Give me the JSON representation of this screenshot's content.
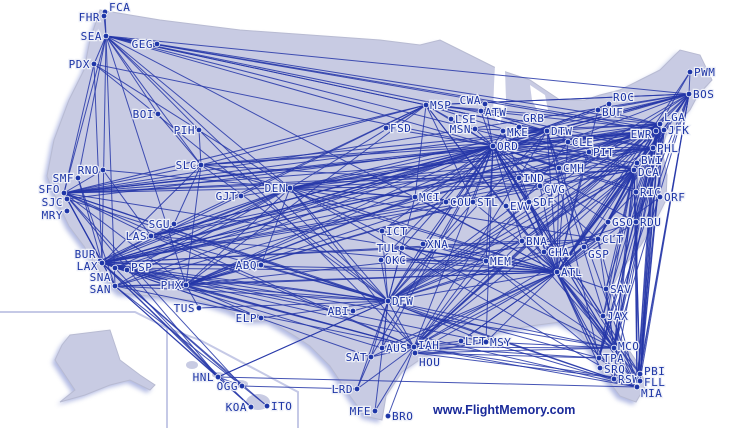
{
  "map": {
    "colors": {
      "land": "#c8cbe3",
      "route": "#2436a8",
      "airport": "#1e36a8",
      "label": "#1d35a6",
      "inset_border": "#c5c9e6"
    },
    "airports": [
      "FCA",
      "FHR",
      "SEA",
      "GEG",
      "PDX",
      "BOI",
      "PIH",
      "SLC",
      "RNO",
      "SMF",
      "SFO",
      "SJC",
      "MRY",
      "GJT",
      "DEN",
      "LAS",
      "SGU",
      "BUR",
      "LAX",
      "SNA",
      "PSP",
      "SAN",
      "PHX",
      "TUS",
      "ABQ",
      "ELP",
      "ABI",
      "DFW",
      "AUS",
      "SAT",
      "IAH",
      "HOU",
      "LFT",
      "MSY",
      "LRD",
      "MFE",
      "BRO",
      "HNL",
      "OGG",
      "KOA",
      "ITO",
      "ICT",
      "MCI",
      "COU",
      "STL",
      "EVV",
      "SDF",
      "IND",
      "CVG",
      "CMH",
      "ORD",
      "MSN",
      "MKE",
      "GRB",
      "DTW",
      "CLE",
      "PIT",
      "LSE",
      "MSP",
      "FSD",
      "ATW",
      "CWA",
      "BUF",
      "ROC",
      "BOS",
      "PWM",
      "JFK",
      "LGA",
      "EWR",
      "PHL",
      "BWI",
      "DCA",
      "RIC",
      "ORF",
      "GSO",
      "RDU",
      "CLT",
      "GSP",
      "BNA",
      "CHA",
      "ATL",
      "XNA",
      "TUL",
      "OKC",
      "MEM",
      "SAV",
      "JAX",
      "MCO",
      "TPA",
      "SRQ",
      "RSW",
      "PBI",
      "FLL",
      "MIA"
    ],
    "routes": [
      "FHR-SEA",
      "FCA-SEA",
      "SEA-PDX",
      "SEA-GEG",
      "SEA-BOI",
      "SEA-SLC",
      "SEA-SFO",
      "SEA-SMF",
      "SEA-LAX",
      "SEA-SAN",
      "SEA-PHX",
      "SEA-DEN",
      "SEA-ORD",
      "SEA-MSP",
      "SEA-DTW",
      "SEA-JFK",
      "SEA-EWR",
      "SEA-BOS",
      "SEA-LGA",
      "SEA-DFW",
      "SEA-ATL",
      "SEA-IAH",
      "SEA-PHL",
      "SEA-DCA",
      "PDX-SFO",
      "PDX-LAX",
      "PDX-DEN",
      "PDX-ORD",
      "PDX-DFW",
      "BOI-SLC",
      "PIH-SLC",
      "SLC-SFO",
      "SLC-DEN",
      "SLC-ORD",
      "SLC-JFK",
      "SLC-ATL",
      "SLC-DFW",
      "SLC-LAX",
      "SLC-MSP",
      "SLC-DTW",
      "SLC-CVG",
      "SLC-PHX",
      "RNO-SFO",
      "RNO-LAS",
      "RNO-DEN",
      "SMF-LAX",
      "SMF-SAN",
      "SFO-LAX",
      "SFO-SAN",
      "SFO-DEN",
      "SFO-ORD",
      "SFO-JFK",
      "SFO-EWR",
      "SFO-BOS",
      "SFO-IAD",
      "SFO-DCA",
      "SFO-DFW",
      "SFO-IAH",
      "SFO-ATL",
      "SFO-PHX",
      "SFO-LAS",
      "SFO-MSP",
      "SFO-DTW",
      "SFO-PHL",
      "SFO-MIA",
      "SFO-HNL",
      "SFO-OGG",
      "SJC-LAX",
      "SJC-ORD",
      "SJC-DFW",
      "SJC-SAN",
      "GJT-DEN",
      "DEN-LAX",
      "DEN-ORD",
      "DEN-JFK",
      "DEN-LGA",
      "DEN-BOS",
      "DEN-DCA",
      "DEN-ATL",
      "DEN-DFW",
      "DEN-IAH",
      "DEN-MCI",
      "DEN-STL",
      "DEN-MSP",
      "DEN-PHX",
      "DEN-LAS",
      "DEN-SAN",
      "DEN-MCO",
      "DEN-MIA",
      "DEN-CLT",
      "DEN-PHL",
      "DEN-CVG",
      "DEN-EWR",
      "LAS-LAX",
      "LAS-ORD",
      "LAS-JFK",
      "LAS-DFW",
      "LAS-ATL",
      "LAS-MSP",
      "LAS-DTW",
      "LAS-IAH",
      "LAS-PHL",
      "LAS-BOS",
      "SGU-SLC",
      "BUR-LAS",
      "BUR-PHX",
      "BUR-DEN",
      "LAX-ORD",
      "LAX-JFK",
      "LAX-EWR",
      "LAX-BOS",
      "LAX-DCA",
      "LAX-IAD",
      "LAX-DFW",
      "LAX-IAH",
      "LAX-ATL",
      "LAX-MIA",
      "LAX-MCO",
      "LAX-PHX",
      "LAX-MSP",
      "LAX-DTW",
      "LAX-PHL",
      "LAX-CLT",
      "LAX-AUS",
      "LAX-MSY",
      "LAX-BNA",
      "LAX-STL",
      "LAX-HNL",
      "LAX-OGG",
      "LAX-KOA",
      "LAX-ITO",
      "LAX-ABQ",
      "LAX-ELP",
      "LAX-SAT",
      "SNA-DFW",
      "SNA-ORD",
      "SNA-DEN",
      "SNA-ATL",
      "SNA-IAH",
      "SNA-HNL",
      "PSP-DEN",
      "PSP-ORD",
      "SAN-ORD",
      "SAN-DFW",
      "SAN-ATL",
      "SAN-JFK",
      "SAN-IAH",
      "SAN-PHX",
      "SAN-HNL",
      "SAN-OGG",
      "PHX-ORD",
      "PHX-DFW",
      "PHX-ATL",
      "PHX-JFK",
      "PHX-IAH",
      "PHX-MSP",
      "PHX-DTW",
      "PHX-PHL",
      "PHX-CLT",
      "PHX-ABQ",
      "PHX-ELP",
      "PHX-MCI",
      "PHX-STL",
      "PHX-BOS",
      "PHX-TUS",
      "TUS-DFW",
      "ABQ-DFW",
      "ABQ-DEN",
      "ELP-DFW",
      "ABI-DFW",
      "DFW-ORD",
      "DFW-ATL",
      "DFW-JFK",
      "DFW-LGA",
      "DFW-DCA",
      "DFW-BOS",
      "DFW-MIA",
      "DFW-MCO",
      "DFW-TPA",
      "DFW-IAH",
      "DFW-AUS",
      "DFW-SAT",
      "DFW-MSY",
      "DFW-MEM",
      "DFW-STL",
      "DFW-MCI",
      "DFW-ORD",
      "DFW-DTW",
      "DFW-CLT",
      "DFW-RDU",
      "DFW-BNA",
      "DFW-OKC",
      "DFW-TUL",
      "DFW-XNA",
      "DFW-ICT",
      "DFW-LRD",
      "DFW-MFE",
      "DFW-HNL",
      "DFW-PHL",
      "DFW-CVG",
      "AUS-IAH",
      "AUS-ATL",
      "AUS-ORD",
      "SAT-IAH",
      "SAT-ATL",
      "SAT-ORD",
      "IAH-ORD",
      "IAH-ATL",
      "IAH-EWR",
      "IAH-LGA",
      "IAH-DCA",
      "IAH-MIA",
      "IAH-MCO",
      "IAH-TPA",
      "IAH-FLL",
      "IAH-MSY",
      "IAH-LFT",
      "IAH-CLT",
      "IAH-BNA",
      "IAH-MEM",
      "IAH-DTW",
      "IAH-CLE",
      "IAH-BOS",
      "IAH-BRO",
      "IAH-MFE",
      "IAH-LRD",
      "HOU-MSY",
      "HOU-MCO",
      "HOU-TPA",
      "HOU-FLL",
      "HOU-ATL",
      "LFT-ATL",
      "MSY-ATL",
      "MSY-MCO",
      "MSY-ORD",
      "MSY-MIA",
      "LRD-SAT",
      "HNL-DFW",
      "HNL-OGG",
      "HNL-KOA",
      "OGG-ITO",
      "ICT-ORD",
      "MCI-ORD",
      "MCI-ATL",
      "MCI-MSP",
      "MCI-DTW",
      "MCI-STL",
      "COU-STL",
      "STL-ORD",
      "STL-ATL",
      "STL-DCA",
      "STL-LGA",
      "STL-MSP",
      "EVV-ATL",
      "SDF-ATL",
      "SDF-ORD",
      "IND-ORD",
      "IND-ATL",
      "IND-LGA",
      "CVG-ATL",
      "CVG-LGA",
      "CVG-ORD",
      "CMH-ORD",
      "CMH-ATL",
      "ORD-MSP",
      "ORD-DTW",
      "ORD-CLE",
      "ORD-PIT",
      "ORD-BUF",
      "ORD-ROC",
      "ORD-BOS",
      "ORD-LGA",
      "ORD-JFK",
      "ORD-EWR",
      "ORD-PHL",
      "ORD-DCA",
      "ORD-BWI",
      "ORD-RIC",
      "ORD-ORF",
      "ORD-RDU",
      "ORD-CLT",
      "ORD-GSO",
      "ORD-ATL",
      "ORD-MIA",
      "ORD-MCO",
      "ORD-TPA",
      "ORD-FLL",
      "ORD-PBI",
      "ORD-JAX",
      "ORD-BNA",
      "ORD-MEM",
      "ORD-MSN",
      "ORD-MKE",
      "ORD-GRB",
      "ORD-LSE",
      "ORD-ATW",
      "ORD-FSD",
      "ORD-XNA",
      "ORD-OKC",
      "ORD-TUL",
      "MSN-DTW",
      "MKE-LGA",
      "MKE-ATL",
      "GRB-DTW",
      "DTW-LGA",
      "DTW-BOS",
      "DTW-DCA",
      "DTW-PHL",
      "DTW-ATL",
      "DTW-MCO",
      "DTW-MIA",
      "DTW-TPA",
      "DTW-MSP",
      "CLE-LGA",
      "CLE-EWR",
      "CLE-ATL",
      "PIT-LGA",
      "PIT-BOS",
      "PIT-ATL",
      "PIT-PHL",
      "LSE-MSP",
      "MSP-LGA",
      "MSP-JFK",
      "MSP-BOS",
      "MSP-DCA",
      "MSP-ATL",
      "MSP-MCO",
      "MSP-DTW",
      "MSP-FSD",
      "ATW-DTW",
      "CWA-ORD",
      "BUF-LGA",
      "BUF-ATL",
      "ROC-ORD",
      "BOS-LGA",
      "BOS-DCA",
      "BOS-PHL",
      "BOS-ATL",
      "BOS-MIA",
      "BOS-MCO",
      "BOS-FLL",
      "BOS-TPA",
      "BOS-PBI",
      "BOS-CLT",
      "BOS-RDU",
      "BOS-PWM",
      "BOS-BUF",
      "BOS-MSP",
      "PWM-LGA",
      "PWM-ATL",
      "JFK-MIA",
      "JFK-FLL",
      "JFK-MCO",
      "JFK-PBI",
      "JFK-TPA",
      "JFK-ATL",
      "JFK-RDU",
      "LGA-ATL",
      "LGA-MIA",
      "LGA-FLL",
      "LGA-PBI",
      "LGA-MCO",
      "LGA-TPA",
      "LGA-RSW",
      "LGA-CLT",
      "LGA-RDU",
      "LGA-GSO",
      "LGA-BNA",
      "LGA-MEM",
      "LGA-CHA",
      "LGA-SAV",
      "LGA-JAX",
      "LGA-ORF",
      "LGA-RIC",
      "LGA-DCA",
      "EWR-MIA",
      "EWR-MCO",
      "EWR-FLL",
      "EWR-ATL",
      "EWR-CLT",
      "PHL-MIA",
      "PHL-MCO",
      "PHL-FLL",
      "PHL-TPA",
      "PHL-ATL",
      "PHL-CLT",
      "BWI-ATL",
      "BWI-MCO",
      "BWI-MIA",
      "DCA-ATL",
      "DCA-MIA",
      "DCA-MCO",
      "DCA-FLL",
      "DCA-TPA",
      "DCA-RSW",
      "DCA-PBI",
      "DCA-JAX",
      "DCA-SAV",
      "DCA-CLT",
      "DCA-RDU",
      "DCA-GSO",
      "DCA-BNA",
      "DCA-MEM",
      "DCA-CHA",
      "DCA-GSP",
      "RIC-ATL",
      "ORF-ATL",
      "GSO-ATL",
      "RDU-ATL",
      "RDU-MIA",
      "CLT-ATL",
      "CLT-MIA",
      "CLT-MCO",
      "GSP-ATL",
      "BNA-ATL",
      "BNA-MCO",
      "CHA-ATL",
      "ATL-MIA",
      "ATL-FLL",
      "ATL-MCO",
      "ATL-TPA",
      "ATL-RSW",
      "ATL-SRQ",
      "ATL-PBI",
      "ATL-JAX",
      "ATL-SAV",
      "ATL-MEM",
      "ATL-XNA",
      "ATL-TUL",
      "ATL-OKC",
      "ATL-ICT",
      "ATL-LFT",
      "XNA-MEM",
      "TUL-MEM",
      "OKC-MEM",
      "MEM-MCO",
      "MEM-MIA",
      "SAV-MCO",
      "JAX-MIA",
      "MCO-MIA",
      "TPA-MIA",
      "MIA-HNL",
      "OGG-LRD",
      "SAN-KOA",
      "LAX-ABI"
    ]
  },
  "footer": {
    "website": "www.FlightMemory.com"
  }
}
